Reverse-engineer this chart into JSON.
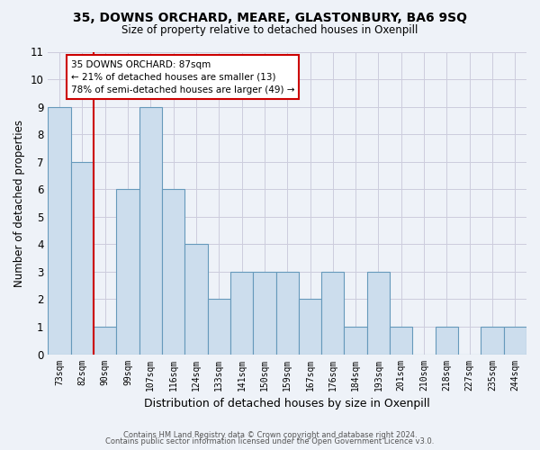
{
  "title": "35, DOWNS ORCHARD, MEARE, GLASTONBURY, BA6 9SQ",
  "subtitle": "Size of property relative to detached houses in Oxenpill",
  "xlabel": "Distribution of detached houses by size in Oxenpill",
  "ylabel": "Number of detached properties",
  "categories": [
    "73sqm",
    "82sqm",
    "90sqm",
    "99sqm",
    "107sqm",
    "116sqm",
    "124sqm",
    "133sqm",
    "141sqm",
    "150sqm",
    "159sqm",
    "167sqm",
    "176sqm",
    "184sqm",
    "193sqm",
    "201sqm",
    "210sqm",
    "218sqm",
    "227sqm",
    "235sqm",
    "244sqm"
  ],
  "values": [
    9,
    7,
    1,
    6,
    9,
    6,
    4,
    2,
    3,
    3,
    3,
    2,
    3,
    1,
    3,
    1,
    0,
    1,
    0,
    1,
    1
  ],
  "bar_color": "#ccdded",
  "bar_edge_color": "#6699bb",
  "grid_color": "#ccccdd",
  "annotation_box_color": "#cc0000",
  "property_line_color": "#cc0000",
  "property_label": "35 DOWNS ORCHARD: 87sqm",
  "annotation_line2": "← 21% of detached houses are smaller (13)",
  "annotation_line3": "78% of semi-detached houses are larger (49) →",
  "ylim": [
    0,
    11
  ],
  "yticks": [
    0,
    1,
    2,
    3,
    4,
    5,
    6,
    7,
    8,
    9,
    10,
    11
  ],
  "footer_line1": "Contains HM Land Registry data © Crown copyright and database right 2024.",
  "footer_line2": "Contains public sector information licensed under the Open Government Licence v3.0.",
  "background_color": "#eef2f8",
  "plot_bg_color": "#eef2f8"
}
